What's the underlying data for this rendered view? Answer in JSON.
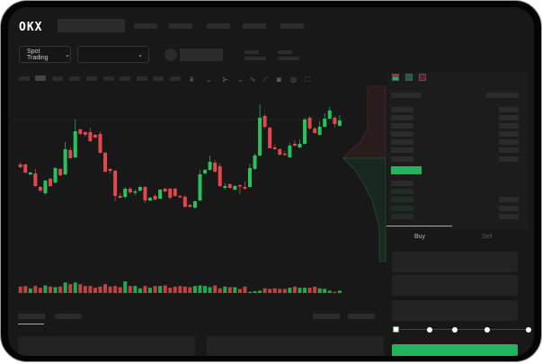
{
  "brand": {
    "logo": "OKX"
  },
  "header": {
    "market_selector": "Spot Trading",
    "pair_selector": ""
  },
  "toolbar": {
    "icons": [
      "indicator-icon",
      "chevron-down-icon",
      "draw-icon",
      "chevron-down-icon",
      "line-icon",
      "ruler-icon",
      "camera-icon",
      "settings-icon",
      "fullscreen-icon"
    ]
  },
  "colors": {
    "up": "#27c25f",
    "down": "#e0494b",
    "accent": "#22b35e",
    "background": "#181818"
  },
  "trade": {
    "tabs": [
      "Buy",
      "Sell"
    ],
    "active_tab": "Buy",
    "slider_percent": 0
  },
  "chart_data": {
    "type": "candlestick",
    "ohlc": [
      [
        58,
        60,
        54,
        55
      ],
      [
        58,
        59,
        48,
        49
      ],
      [
        47,
        50,
        46,
        49
      ],
      [
        48,
        53,
        33,
        34
      ],
      [
        33,
        34,
        27,
        29
      ],
      [
        26,
        41,
        24,
        40
      ],
      [
        42,
        43,
        33,
        34
      ],
      [
        38,
        55,
        37,
        54
      ],
      [
        53,
        54,
        45,
        46
      ],
      [
        47,
        83,
        46,
        75
      ],
      [
        74,
        77,
        64,
        65
      ],
      [
        66,
        108,
        65,
        95
      ],
      [
        97,
        98,
        91,
        92
      ],
      [
        94,
        95,
        89,
        91
      ],
      [
        94,
        99,
        83,
        84
      ],
      [
        91,
        92,
        87,
        88
      ],
      [
        92,
        95,
        70,
        71
      ],
      [
        71,
        72,
        49,
        50
      ],
      [
        53,
        54,
        48,
        51
      ],
      [
        51,
        52,
        17,
        23
      ],
      [
        23,
        26,
        20,
        21
      ],
      [
        22,
        33,
        20,
        31
      ],
      [
        31,
        33,
        25,
        27
      ],
      [
        27,
        30,
        24,
        28
      ],
      [
        29,
        34,
        28,
        33
      ],
      [
        33,
        34,
        15,
        18
      ],
      [
        18,
        22,
        17,
        21
      ],
      [
        23,
        25,
        18,
        19
      ],
      [
        20,
        31,
        19,
        30
      ],
      [
        31,
        32,
        27,
        28
      ],
      [
        31,
        32,
        19,
        21
      ],
      [
        31,
        32,
        22,
        23
      ],
      [
        23,
        24,
        21,
        22
      ],
      [
        22,
        24,
        10,
        11
      ],
      [
        13,
        14,
        10,
        11
      ],
      [
        10,
        18,
        9,
        17
      ],
      [
        18,
        52,
        17,
        47
      ],
      [
        48,
        53,
        47,
        52
      ],
      [
        52,
        68,
        51,
        61
      ],
      [
        60,
        63,
        49,
        50
      ],
      [
        56,
        59,
        33,
        34
      ],
      [
        32,
        37,
        30,
        34
      ],
      [
        36,
        37,
        31,
        32
      ],
      [
        30,
        35,
        29,
        34
      ],
      [
        35,
        36,
        25,
        34
      ],
      [
        33,
        39,
        30,
        31
      ],
      [
        33,
        59,
        32,
        54
      ],
      [
        53,
        70,
        52,
        68
      ],
      [
        68,
        125,
        67,
        110
      ],
      [
        112,
        114,
        98,
        100
      ],
      [
        99,
        100,
        76,
        76
      ],
      [
        77,
        80,
        74,
        75
      ],
      [
        75,
        76,
        68,
        69
      ],
      [
        70,
        73,
        68,
        69
      ],
      [
        66,
        82,
        65,
        79
      ],
      [
        81,
        85,
        78,
        79
      ],
      [
        77,
        86,
        76,
        81
      ],
      [
        81,
        110,
        80,
        108
      ],
      [
        110,
        112,
        97,
        98
      ],
      [
        98,
        100,
        92,
        93
      ],
      [
        91,
        106,
        90,
        100
      ],
      [
        100,
        115,
        99,
        109
      ],
      [
        109,
        122,
        108,
        118
      ],
      [
        110,
        112,
        99,
        103
      ],
      [
        101,
        113,
        100,
        107
      ]
    ],
    "volume": [
      11,
      12,
      8,
      12,
      9,
      13,
      11,
      10,
      11,
      18,
      15,
      18,
      15,
      12,
      12,
      9,
      11,
      15,
      11,
      12,
      10,
      20,
      12,
      12,
      8,
      12,
      9,
      12,
      12,
      13,
      9,
      11,
      12,
      11,
      10,
      12,
      13,
      12,
      10,
      13,
      8,
      11,
      10,
      10,
      7,
      11,
      2,
      3,
      4,
      8,
      7,
      8,
      7,
      7,
      9,
      11,
      9,
      9,
      9,
      11,
      8,
      7,
      4,
      2,
      4
    ],
    "grid": false
  }
}
